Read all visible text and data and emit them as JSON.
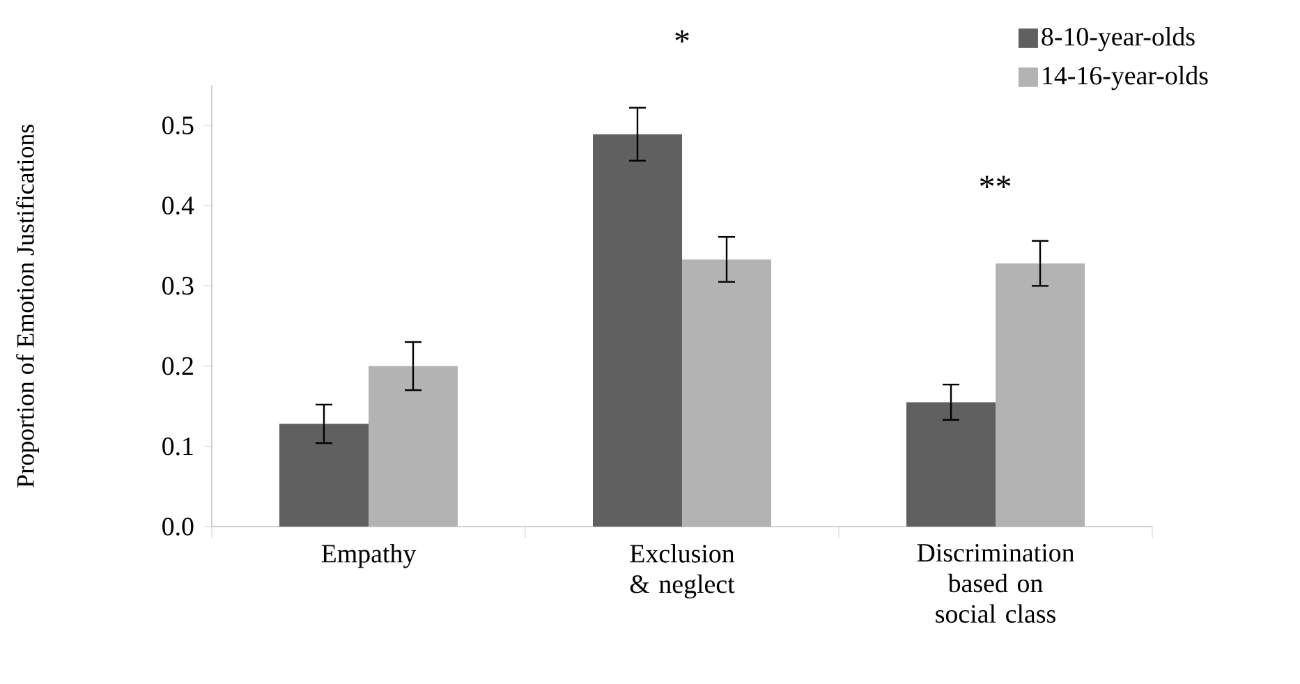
{
  "chart_data": {
    "type": "bar",
    "ylabel": "Proportion of Emotion Justifications",
    "categories": [
      "Empathy",
      "Exclusion & neglect",
      "Discrimination based on social class"
    ],
    "series": [
      {
        "name": "8-10-year-olds",
        "color": "#606060",
        "values": [
          0.128,
          0.489,
          0.155
        ],
        "errors": [
          0.024,
          0.033,
          0.022
        ]
      },
      {
        "name": "14-16-year-olds",
        "color": "#b3b3b3",
        "values": [
          0.2,
          0.333,
          0.328
        ],
        "errors": [
          0.03,
          0.028,
          0.028
        ]
      }
    ],
    "ylim": [
      0,
      0.55
    ],
    "yticks": [
      {
        "value": 0,
        "label": "0.0"
      },
      0.1,
      0.2,
      0.3,
      0.4,
      0.5
    ],
    "legend": "top right",
    "annotations": [
      "*",
      "**"
    ]
  }
}
